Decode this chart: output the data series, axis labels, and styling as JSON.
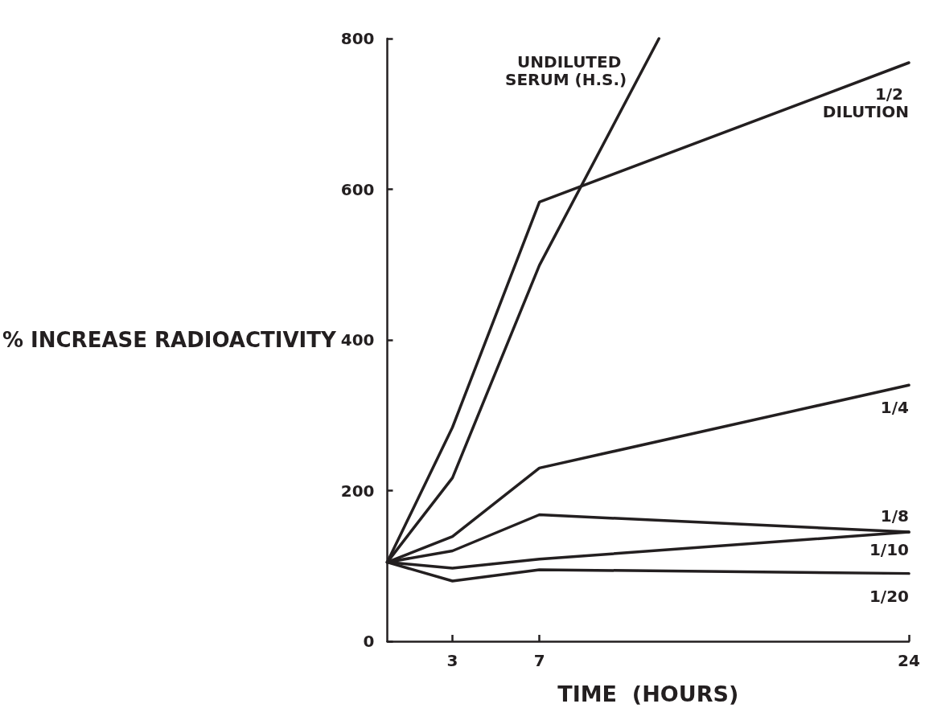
{
  "chart_data": {
    "type": "line",
    "xlabel": "TIME  (HOURS)",
    "ylabel": "% INCREASE RADIOACTIVITY",
    "xlim": [
      0,
      24
    ],
    "xticks": [
      3,
      7,
      24
    ],
    "ylim": [
      0,
      800
    ],
    "yticks": [
      0,
      200,
      400,
      600,
      800
    ],
    "grid": false,
    "legend": false,
    "marker": "none",
    "line_style": "solid",
    "series": [
      {
        "name": "UNDILUTED SERUM (H.S.)",
        "color": "#231f20",
        "x": [
          0,
          3,
          7,
          12.5
        ],
        "values": [
          105,
          217,
          499,
          800
        ]
      },
      {
        "name": "1/2 DILUTION",
        "color": "#231f20",
        "x": [
          0,
          3,
          7,
          24
        ],
        "values": [
          105,
          284,
          583,
          768
        ]
      },
      {
        "name": "1/4",
        "color": "#231f20",
        "x": [
          0,
          3,
          7,
          24
        ],
        "values": [
          105,
          139,
          230,
          340
        ]
      },
      {
        "name": "1/8",
        "color": "#231f20",
        "x": [
          0,
          3,
          7,
          24
        ],
        "values": [
          105,
          120,
          168,
          145
        ]
      },
      {
        "name": "1/10",
        "color": "#231f20",
        "x": [
          0,
          3,
          7,
          24
        ],
        "values": [
          105,
          97,
          109,
          145
        ]
      },
      {
        "name": "1/20",
        "color": "#231f20",
        "x": [
          0,
          3,
          7,
          24
        ],
        "values": [
          105,
          80,
          95,
          90
        ]
      }
    ]
  }
}
